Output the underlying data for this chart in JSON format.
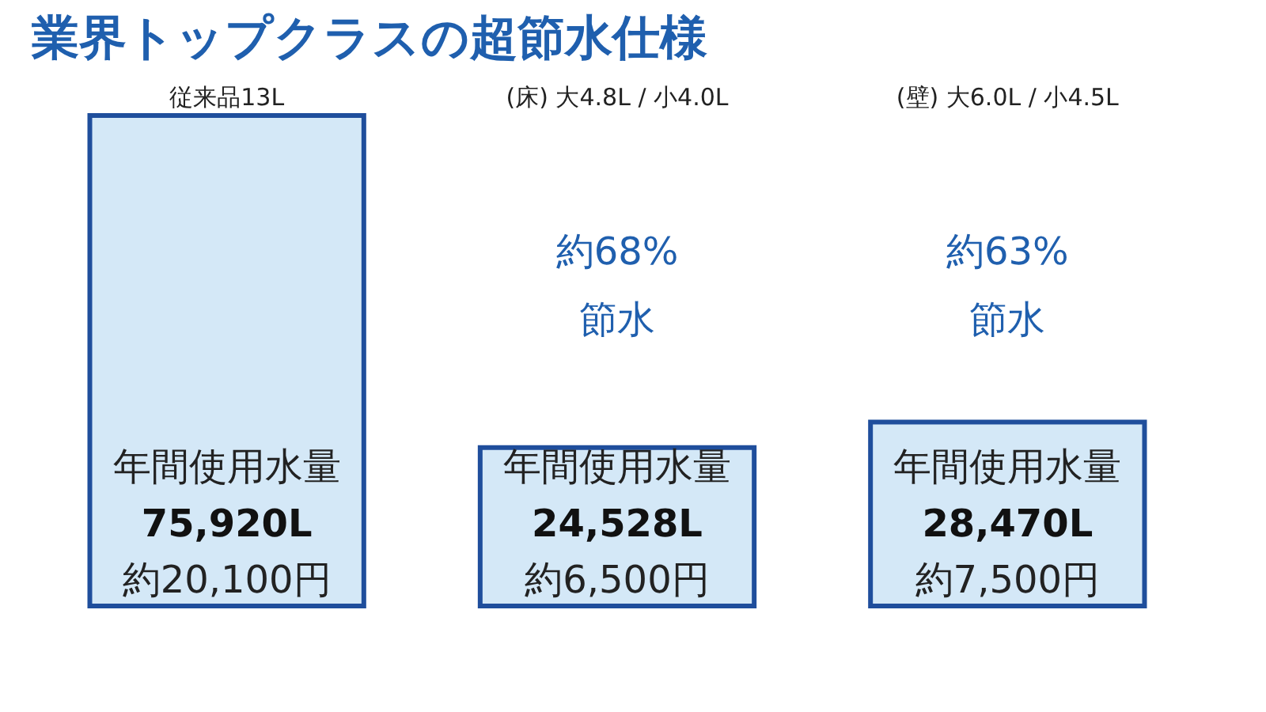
{
  "chart_data": {
    "type": "bar",
    "title": "業界トップクラスの超節水仕様",
    "categories": [
      "従来品13L",
      "(床) 大4.8L / 小4.0L",
      "(壁) 大6.0L / 小4.5L"
    ],
    "values": [
      75920,
      24528,
      28470
    ],
    "color": "#d4e8f7",
    "value_labels": [
      "75,920L",
      "24,528L",
      "28,470L"
    ],
    "tick_labels": "x",
    "annotations": [
      "年間使用水量",
      "約20,100円",
      "年間使用水量",
      "約6,500円",
      "年間使用水量",
      "約7,500円",
      "約68%",
      "節水",
      "約63%",
      "節水"
    ]
  }
}
